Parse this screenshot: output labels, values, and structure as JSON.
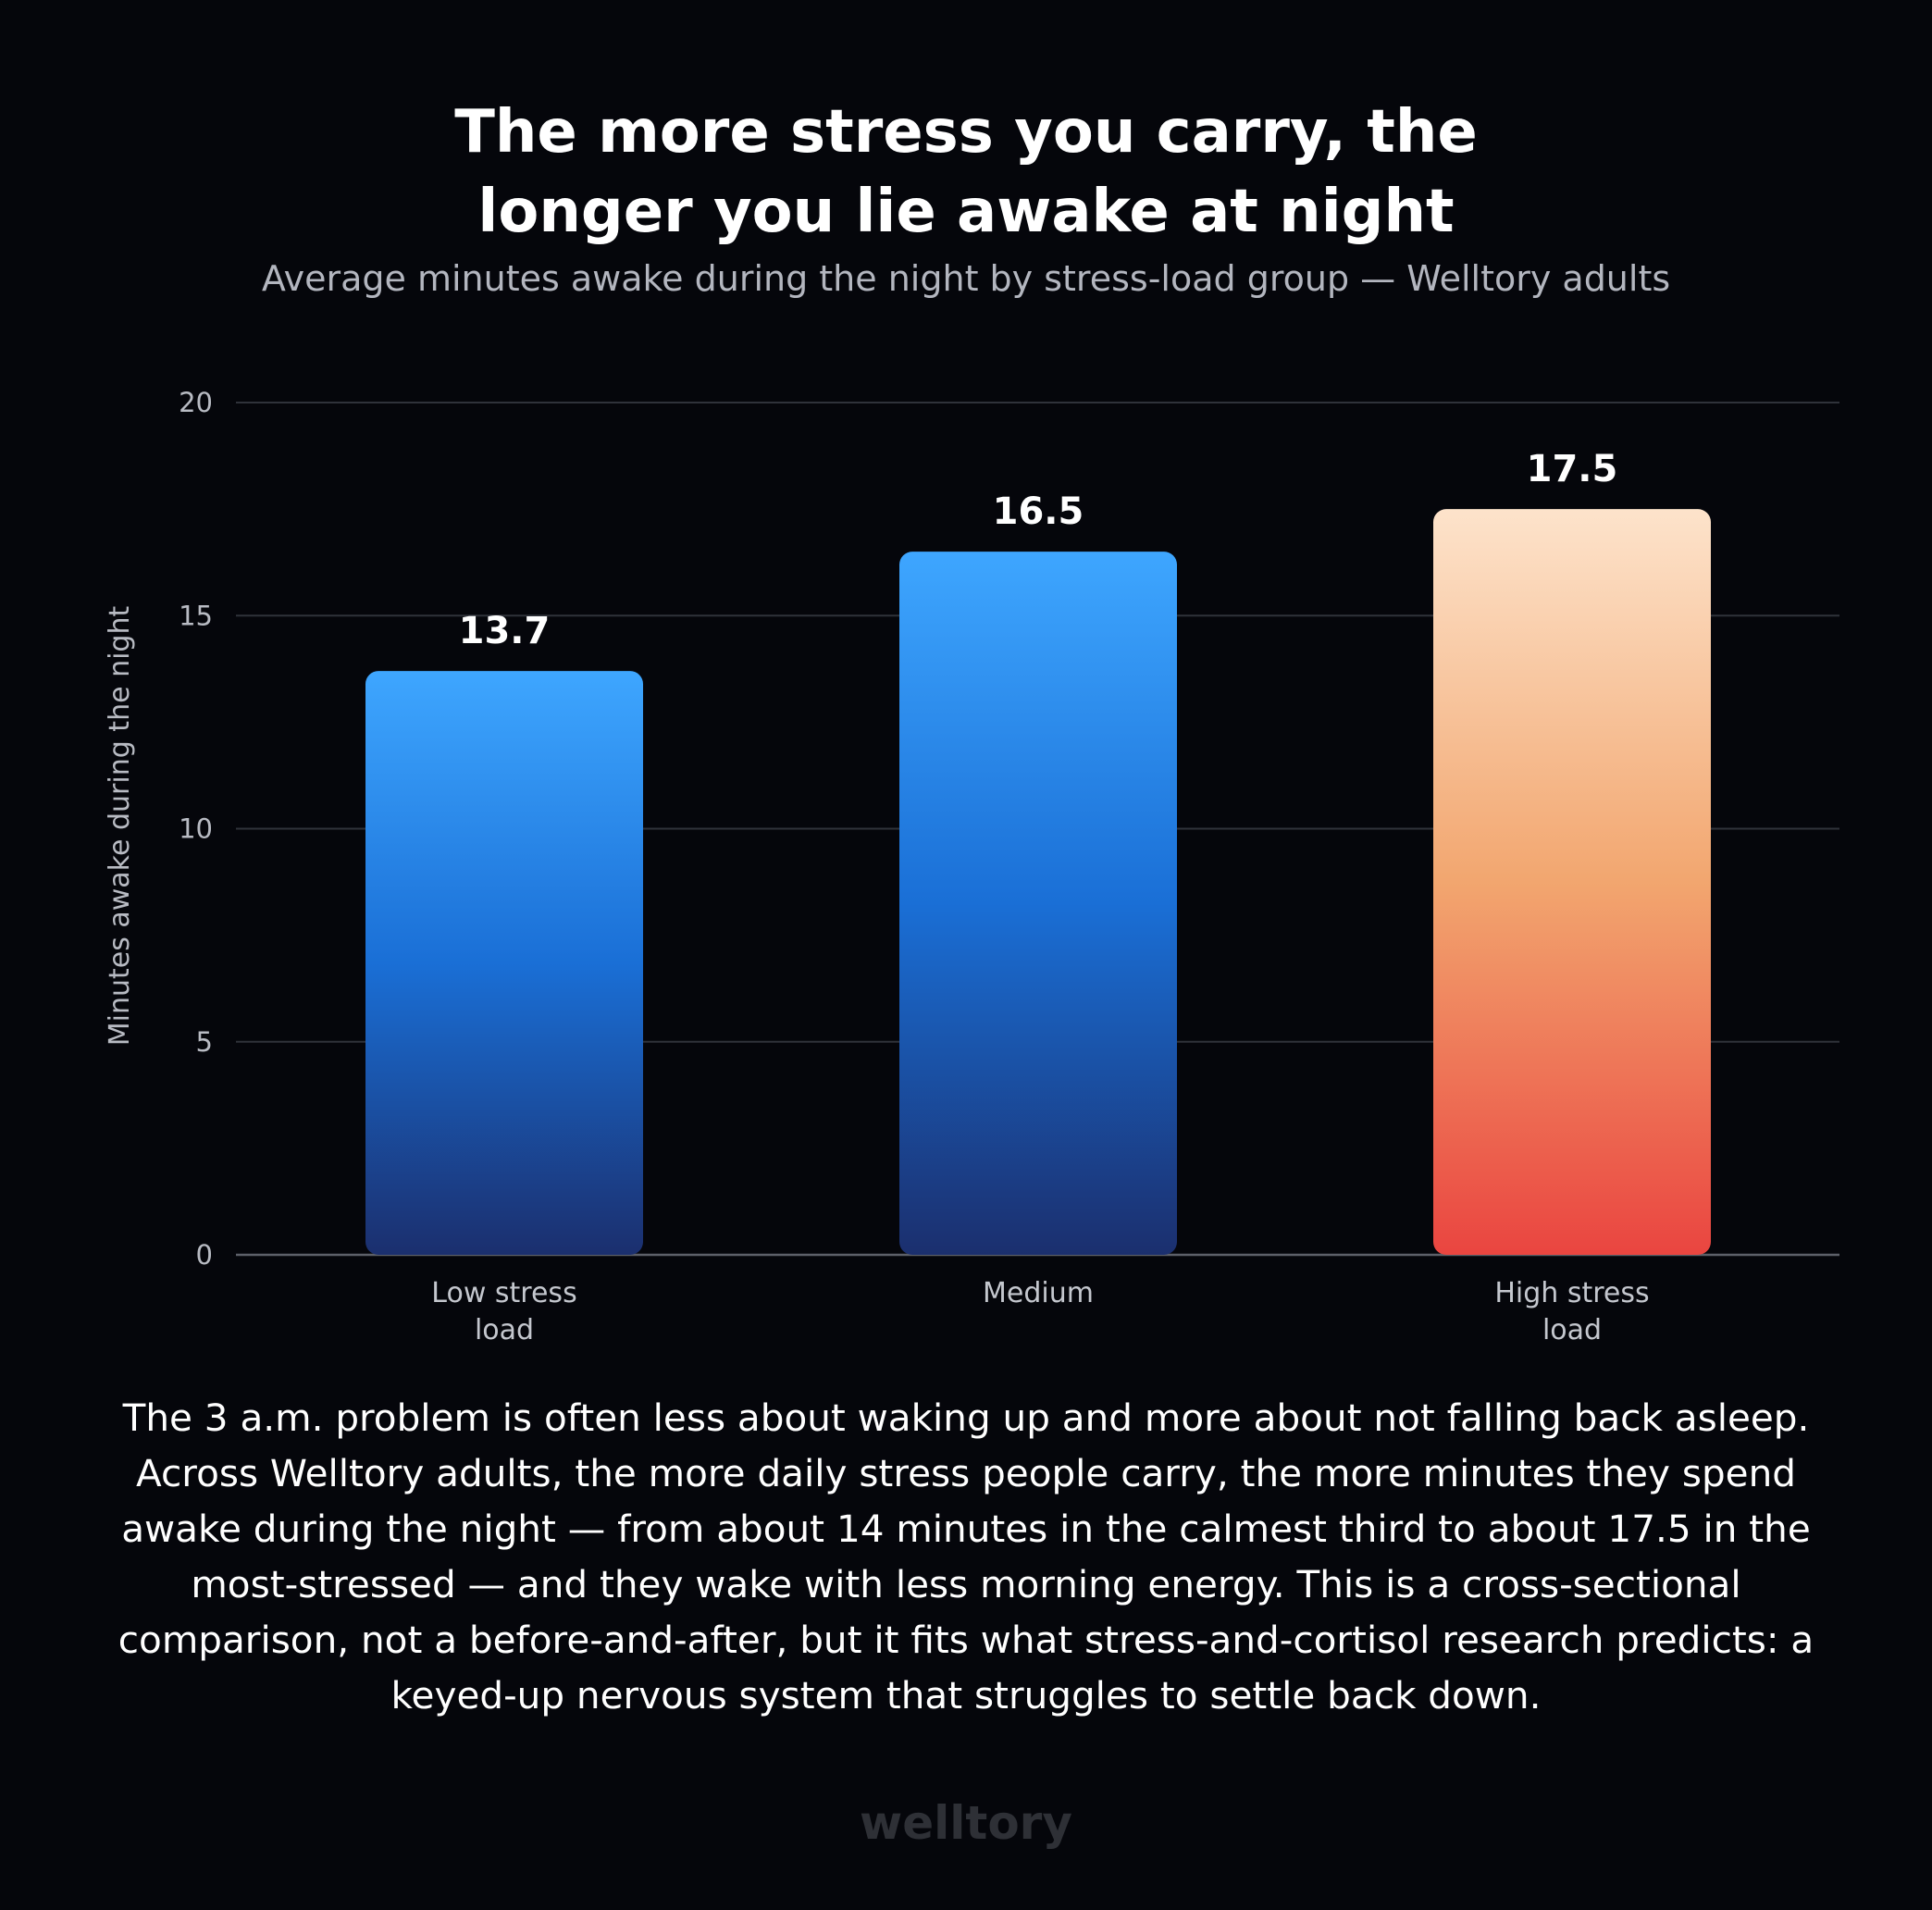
{
  "title_line1": "The more stress you carry, the",
  "title_line2": "longer you lie awake at night",
  "subtitle": "Average minutes awake during the night by stress-load group — Welltory adults",
  "chart_data": {
    "type": "bar",
    "categories": [
      [
        "Low stress",
        "load"
      ],
      [
        "Medium"
      ],
      [
        "High stress",
        "load"
      ]
    ],
    "values": [
      13.7,
      16.5,
      17.5
    ],
    "value_labels": [
      "13.7",
      "16.5",
      "17.5"
    ],
    "ylabel": "Minutes awake during the night",
    "xlabel": "",
    "ylim": [
      0,
      20
    ],
    "yticks": [
      0,
      5,
      10,
      15,
      20
    ],
    "grid": true,
    "bar_gradients": [
      [
        "#3ea6ff",
        "#1a6fd6",
        "#1b2f6e"
      ],
      [
        "#3ea6ff",
        "#1a6fd6",
        "#1b2f6e"
      ],
      [
        "#fde3cb",
        "#f2a66f",
        "#ea4540"
      ]
    ]
  },
  "body_text": "The 3 a.m. problem is often less about waking up and more about not falling back asleep. Across Welltory adults, the more daily stress people carry, the more minutes they spend awake during the night — from about 14 minutes in the calmest third to about 17.5 in the most-stressed — and they wake with less morning energy. This is a cross-sectional comparison, not a before-and-after, but it fits what stress-and-cortisol research predicts: a keyed-up nervous system that struggles to settle back down.",
  "footer_logo": "welltory"
}
